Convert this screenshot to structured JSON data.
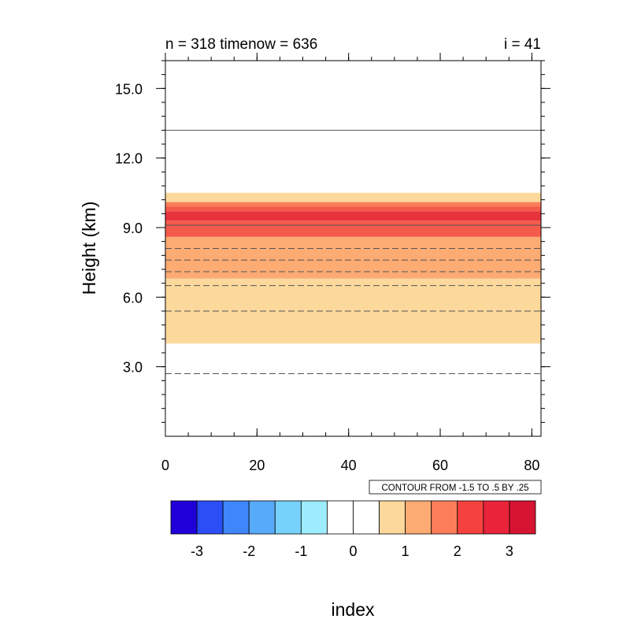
{
  "chart_data": {
    "type": "heatmap",
    "title_left": "n = 318 timenow = 636",
    "title_right": "i = 41",
    "ylabel": "Height (km)",
    "xlabel": "index",
    "xlim": [
      0,
      82
    ],
    "ylim": [
      0,
      16.2
    ],
    "x_ticks": [
      0,
      20,
      40,
      60,
      80
    ],
    "x_tick_labels": [
      "0",
      "20",
      "40",
      "60",
      "80"
    ],
    "y_ticks": [
      3,
      6,
      9,
      12,
      15
    ],
    "y_tick_labels": [
      "3.0",
      "6.0",
      "9.0",
      "12.0",
      "15.0"
    ],
    "contour_info": "CONTOUR FROM -1.5 TO .5 BY .25",
    "fill_bands": [
      {
        "y0": 4.0,
        "y1": 6.8,
        "color": "#fdd89c"
      },
      {
        "y0": 6.8,
        "y1": 8.6,
        "color": "#fcab73"
      },
      {
        "y0": 8.6,
        "y1": 9.3,
        "color": "#f45b4b"
      },
      {
        "y0": 9.3,
        "y1": 9.7,
        "color": "#e8333f"
      },
      {
        "y0": 9.7,
        "y1": 9.9,
        "color": "#f45b4b"
      },
      {
        "y0": 9.9,
        "y1": 10.1,
        "color": "#fb7d59"
      },
      {
        "y0": 10.1,
        "y1": 10.5,
        "color": "#fdd89c"
      }
    ],
    "contour_lines": [
      {
        "y": 2.7,
        "style": "dashed"
      },
      {
        "y": 5.4,
        "style": "dashed"
      },
      {
        "y": 6.5,
        "style": "dashed"
      },
      {
        "y": 7.1,
        "style": "dashed"
      },
      {
        "y": 7.6,
        "style": "dashed"
      },
      {
        "y": 8.1,
        "style": "dashed"
      },
      {
        "y": 9.1,
        "style": "solid"
      },
      {
        "y": 13.2,
        "style": "solid"
      }
    ],
    "colorbar": {
      "colors": [
        "#2000d8",
        "#2b4ef6",
        "#3e86f9",
        "#57aafa",
        "#77d2fb",
        "#9cecfd",
        "#ffffff",
        "#ffffff",
        "#fdd89c",
        "#fcab73",
        "#fb7d59",
        "#f6423f",
        "#e8233a",
        "#d41431"
      ],
      "labels": [
        "-3",
        "-2",
        "-1",
        "0",
        "1",
        "2",
        "3"
      ]
    }
  }
}
